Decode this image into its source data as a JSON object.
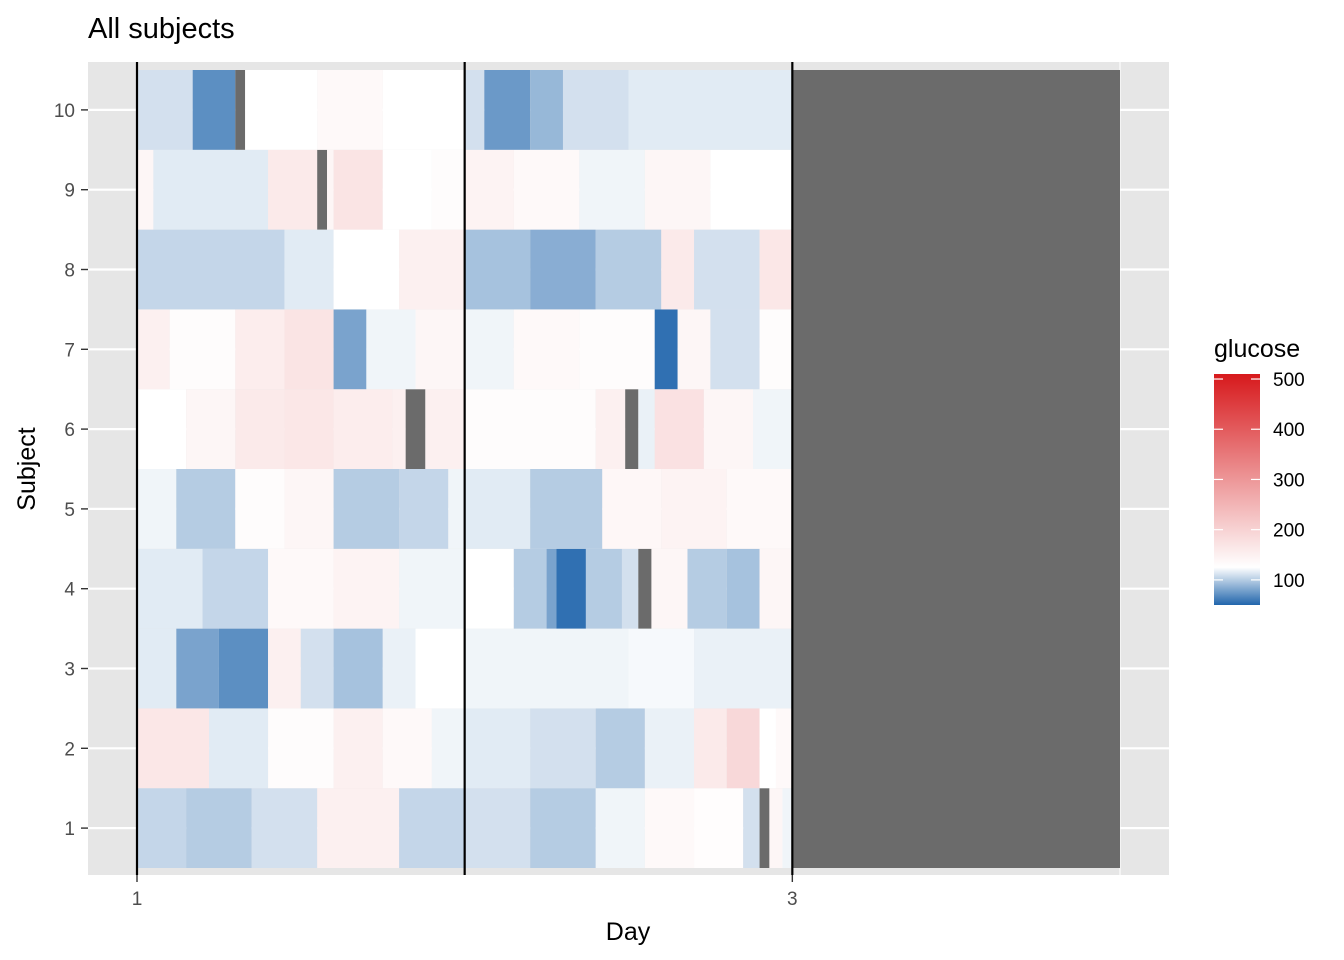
{
  "chart_data": {
    "type": "heatmap",
    "title": "All subjects",
    "xlabel": "Day",
    "ylabel": "Subject",
    "x_ticks": [
      "1",
      "3"
    ],
    "y_ticks": [
      "1",
      "2",
      "3",
      "4",
      "5",
      "6",
      "7",
      "8",
      "9",
      "10"
    ],
    "day_range": [
      1,
      4
    ],
    "day_boundaries": [
      1,
      2,
      3
    ],
    "missing_fill_days": [
      3,
      4
    ],
    "legend": {
      "title": "glucose",
      "ticks": [
        "500",
        "400",
        "300",
        "200",
        "100"
      ],
      "tick_values": [
        500,
        400,
        300,
        200,
        100
      ],
      "range": [
        50,
        510
      ],
      "low_color": "#2166ac",
      "mid_color": "#ffffff",
      "high_color": "#d7191c",
      "mid_value": 125,
      "missing_color": "#6b6b6b"
    },
    "subjects": [
      {
        "name": "1",
        "segments": [
          [
            1.0,
            105
          ],
          [
            1.15,
            100
          ],
          [
            1.35,
            110
          ],
          [
            1.55,
            150
          ],
          [
            1.8,
            105
          ],
          [
            2.0,
            110
          ],
          [
            2.2,
            100
          ],
          [
            2.4,
            120
          ],
          [
            2.55,
            135
          ],
          [
            2.7,
            128
          ],
          [
            2.85,
            110
          ],
          [
            2.9,
            null
          ],
          [
            2.93,
            140
          ],
          [
            2.97,
            120
          ]
        ]
      },
      {
        "name": "2",
        "segments": [
          [
            1.0,
            165
          ],
          [
            1.22,
            115
          ],
          [
            1.4,
            130
          ],
          [
            1.6,
            150
          ],
          [
            1.75,
            135
          ],
          [
            1.9,
            120
          ],
          [
            2.0,
            115
          ],
          [
            2.2,
            110
          ],
          [
            2.4,
            100
          ],
          [
            2.55,
            118
          ],
          [
            2.7,
            160
          ],
          [
            2.8,
            190
          ],
          [
            2.9,
            125
          ],
          [
            2.95,
            135
          ]
        ]
      },
      {
        "name": "3",
        "segments": [
          [
            1.0,
            115
          ],
          [
            1.12,
            80
          ],
          [
            1.25,
            70
          ],
          [
            1.4,
            150
          ],
          [
            1.5,
            110
          ],
          [
            1.6,
            95
          ],
          [
            1.75,
            118
          ],
          [
            1.85,
            125
          ],
          [
            2.0,
            120
          ],
          [
            2.5,
            122
          ],
          [
            2.7,
            118
          ]
        ]
      },
      {
        "name": "4",
        "segments": [
          [
            1.0,
            115
          ],
          [
            1.2,
            105
          ],
          [
            1.4,
            135
          ],
          [
            1.6,
            145
          ],
          [
            1.8,
            120
          ],
          [
            2.0,
            125
          ],
          [
            2.15,
            100
          ],
          [
            2.25,
            80
          ],
          [
            2.28,
            55
          ],
          [
            2.37,
            100
          ],
          [
            2.48,
            110
          ],
          [
            2.53,
            null
          ],
          [
            2.57,
            140
          ],
          [
            2.68,
            100
          ],
          [
            2.8,
            95
          ],
          [
            2.9,
            140
          ]
        ]
      },
      {
        "name": "5",
        "segments": [
          [
            1.0,
            120
          ],
          [
            1.12,
            100
          ],
          [
            1.3,
            130
          ],
          [
            1.45,
            140
          ],
          [
            1.6,
            100
          ],
          [
            1.8,
            105
          ],
          [
            1.95,
            120
          ],
          [
            2.0,
            115
          ],
          [
            2.2,
            100
          ],
          [
            2.42,
            138
          ],
          [
            2.6,
            145
          ],
          [
            2.8,
            135
          ]
        ]
      },
      {
        "name": "6",
        "segments": [
          [
            1.0,
            125
          ],
          [
            1.15,
            140
          ],
          [
            1.3,
            160
          ],
          [
            1.45,
            165
          ],
          [
            1.6,
            155
          ],
          [
            1.78,
            150
          ],
          [
            1.82,
            null
          ],
          [
            1.88,
            150
          ],
          [
            2.0,
            130
          ],
          [
            2.4,
            150
          ],
          [
            2.49,
            null
          ],
          [
            2.53,
            118
          ],
          [
            2.58,
            175
          ],
          [
            2.73,
            140
          ],
          [
            2.88,
            120
          ]
        ]
      },
      {
        "name": "7",
        "segments": [
          [
            1.0,
            150
          ],
          [
            1.1,
            130
          ],
          [
            1.3,
            155
          ],
          [
            1.45,
            170
          ],
          [
            1.6,
            80
          ],
          [
            1.7,
            120
          ],
          [
            1.85,
            140
          ],
          [
            2.0,
            120
          ],
          [
            2.15,
            135
          ],
          [
            2.35,
            130
          ],
          [
            2.58,
            55
          ],
          [
            2.65,
            140
          ],
          [
            2.75,
            110
          ],
          [
            2.9,
            130
          ]
        ]
      },
      {
        "name": "8",
        "segments": [
          [
            1.0,
            105
          ],
          [
            1.45,
            115
          ],
          [
            1.6,
            125
          ],
          [
            1.8,
            150
          ],
          [
            2.0,
            95
          ],
          [
            2.2,
            85
          ],
          [
            2.4,
            100
          ],
          [
            2.6,
            160
          ],
          [
            2.7,
            110
          ],
          [
            2.9,
            165
          ]
        ]
      },
      {
        "name": "9",
        "segments": [
          [
            1.0,
            140
          ],
          [
            1.05,
            115
          ],
          [
            1.4,
            160
          ],
          [
            1.55,
            null
          ],
          [
            1.58,
            140
          ],
          [
            1.6,
            170
          ],
          [
            1.75,
            125
          ],
          [
            1.9,
            130
          ],
          [
            2.0,
            145
          ],
          [
            2.15,
            135
          ],
          [
            2.35,
            120
          ],
          [
            2.55,
            140
          ],
          [
            2.75,
            125
          ]
        ]
      },
      {
        "name": "10",
        "segments": [
          [
            1.0,
            110
          ],
          [
            1.17,
            70
          ],
          [
            1.3,
            null
          ],
          [
            1.33,
            125
          ],
          [
            1.55,
            135
          ],
          [
            1.75,
            125
          ],
          [
            2.0,
            110
          ],
          [
            2.06,
            75
          ],
          [
            2.2,
            90
          ],
          [
            2.3,
            110
          ],
          [
            2.5,
            115
          ]
        ]
      }
    ]
  }
}
